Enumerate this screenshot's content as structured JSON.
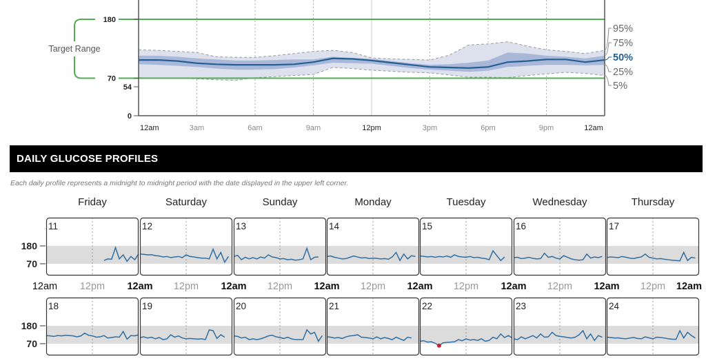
{
  "chart_data": [
    {
      "type": "area",
      "title": "",
      "x_ticks": [
        "12am",
        "3am",
        "6am",
        "9am",
        "12pm",
        "3pm",
        "6pm",
        "9pm",
        "12am"
      ],
      "y_ticks": [
        0,
        54,
        70,
        180
      ],
      "ylim": [
        0,
        216
      ],
      "target_range": {
        "label": "Target Range",
        "low": 70,
        "high": 180
      },
      "hours": [
        0,
        1,
        2,
        3,
        4,
        5,
        6,
        7,
        8,
        9,
        10,
        11,
        12,
        13,
        14,
        15,
        16,
        17,
        18,
        19,
        20,
        21,
        22,
        23,
        24
      ],
      "series": [
        {
          "name": "95%",
          "values": [
            123,
            122,
            120,
            118,
            110,
            109,
            109,
            112,
            116,
            120,
            122,
            118,
            108,
            106,
            105,
            104,
            113,
            132,
            134,
            138,
            130,
            123,
            120,
            116,
            122
          ]
        },
        {
          "name": "75%",
          "values": [
            112,
            112,
            110,
            107,
            105,
            103,
            103,
            104,
            105,
            105,
            110,
            108,
            106,
            102,
            98,
            95,
            96,
            99,
            103,
            118,
            116,
            112,
            110,
            107,
            112
          ]
        },
        {
          "name": "50%",
          "values": [
            104,
            104,
            102,
            98,
            96,
            95,
            95,
            95,
            96,
            100,
            107,
            106,
            103,
            99,
            95,
            91,
            90,
            89,
            91,
            100,
            102,
            105,
            105,
            100,
            104
          ]
        },
        {
          "name": "25%",
          "values": [
            96,
            95,
            93,
            91,
            88,
            86,
            86,
            87,
            90,
            94,
            99,
            98,
            97,
            93,
            89,
            86,
            84,
            82,
            84,
            91,
            93,
            95,
            95,
            94,
            95
          ]
        },
        {
          "name": "5%",
          "values": [
            71,
            70,
            70,
            69,
            67,
            66,
            71,
            73,
            75,
            77,
            90,
            88,
            85,
            83,
            81,
            80,
            76,
            72,
            72,
            71,
            75,
            78,
            81,
            79,
            75
          ]
        }
      ],
      "colors": {
        "outer_band": "#dde1ee",
        "inner_band": "#a9b7d9",
        "median": "#245f94",
        "target": "#4caf50",
        "percentile_label": "#666",
        "median_label": "#245f94"
      },
      "grid": true
    },
    {
      "type": "line",
      "title": "DAILY GLUCOSE PROFILES",
      "caption": "Each daily profile represents a midnight to midnight period with the date displayed in the upper left corner.",
      "weekdays": [
        "Friday",
        "Saturday",
        "Sunday",
        "Monday",
        "Tuesday",
        "Wednesday",
        "Thursday"
      ],
      "y_ticks": [
        180,
        70
      ],
      "x_ticks": {
        "start": "12am",
        "mid": "12pm"
      },
      "target_band": [
        70,
        180
      ],
      "colors": {
        "line": "#2f6ea3",
        "band": "#dcdcdc",
        "low": "#c0233a"
      },
      "days": [
        {
          "date": "11",
          "values": [
            null,
            null,
            null,
            null,
            null,
            null,
            null,
            null,
            null,
            null,
            null,
            null,
            null,
            null,
            null,
            90,
            100,
            98,
            170,
            100,
            125,
            85,
            115,
            95,
            130
          ]
        },
        {
          "date": "12",
          "values": [
            130,
            128,
            125,
            126,
            120,
            118,
            112,
            115,
            108,
            112,
            115,
            108,
            125,
            115,
            112,
            108,
            105,
            105,
            100,
            160,
            100,
            140,
            80,
            115,
            null
          ]
        },
        {
          "date": "13",
          "values": [
            115,
            122,
            95,
            110,
            100,
            108,
            100,
            112,
            105,
            125,
            112,
            108,
            100,
            102,
            95,
            98,
            92,
            95,
            100,
            165,
            95,
            110,
            112,
            null,
            null
          ]
        },
        {
          "date": "14",
          "values": [
            115,
            118,
            110,
            105,
            100,
            102,
            110,
            118,
            112,
            106,
            108,
            102,
            105,
            103,
            100,
            102,
            98,
            112,
            140,
            90,
            130,
            100,
            120,
            115,
            null
          ]
        },
        {
          "date": "15",
          "values": [
            118,
            116,
            112,
            115,
            110,
            115,
            112,
            118,
            110,
            125,
            115,
            112,
            110,
            115,
            108,
            110,
            105,
            102,
            95,
            150,
            120,
            90,
            112,
            null,
            null
          ]
        },
        {
          "date": "16",
          "values": [
            108,
            110,
            102,
            105,
            110,
            103,
            100,
            102,
            135,
            110,
            115,
            105,
            100,
            120,
            110,
            100,
            95,
            92,
            95,
            130,
            105,
            112,
            108,
            115,
            null
          ]
        },
        {
          "date": "17",
          "values": [
            108,
            112,
            110,
            108,
            115,
            110,
            105,
            102,
            108,
            112,
            130,
            110,
            105,
            100,
            102,
            98,
            95,
            92,
            90,
            88,
            140,
            90,
            110,
            105,
            null
          ]
        },
        {
          "date": "18",
          "values": [
            120,
            118,
            115,
            120,
            118,
            122,
            120,
            118,
            112,
            118,
            135,
            122,
            118,
            110,
            112,
            120,
            105,
            108,
            112,
            110,
            145,
            98,
            120,
            118,
            125
          ]
        },
        {
          "date": "19",
          "values": [
            108,
            112,
            105,
            110,
            100,
            108,
            95,
            100,
            125,
            110,
            118,
            105,
            100,
            102,
            100,
            98,
            100,
            95,
            155,
            150,
            102,
            125,
            110,
            null,
            null
          ]
        },
        {
          "date": "20",
          "values": [
            118,
            115,
            105,
            110,
            95,
            100,
            95,
            100,
            108,
            118,
            122,
            112,
            108,
            102,
            110,
            100,
            95,
            95,
            95,
            155,
            130,
            140,
            85,
            120,
            null
          ]
        },
        {
          "date": "21",
          "values": [
            112,
            110,
            105,
            108,
            102,
            112,
            118,
            120,
            125,
            110,
            108,
            105,
            100,
            112,
            100,
            108,
            102,
            95,
            110,
            100,
            90,
            110,
            105,
            null,
            null
          ]
        },
        {
          "date": "22",
          "values": [
            85,
            88,
            80,
            82,
            72,
            58,
            75,
            78,
            80,
            82,
            95,
            88,
            100,
            92,
            95,
            90,
            100,
            85,
            90,
            110,
            100,
            130,
            108,
            120,
            105
          ]
        },
        {
          "date": "23",
          "values": [
            100,
            95,
            112,
            100,
            110,
            120,
            105,
            130,
            110,
            112,
            140,
            120,
            115,
            112,
            108,
            105,
            110,
            125,
            150,
            100,
            130,
            90,
            120,
            110,
            null
          ]
        },
        {
          "date": "24",
          "values": [
            110,
            108,
            105,
            106,
            102,
            100,
            105,
            108,
            102,
            100,
            112,
            106,
            100,
            110,
            108,
            105,
            100,
            98,
            97,
            150,
            105,
            140,
            120,
            105,
            null
          ]
        }
      ]
    }
  ]
}
